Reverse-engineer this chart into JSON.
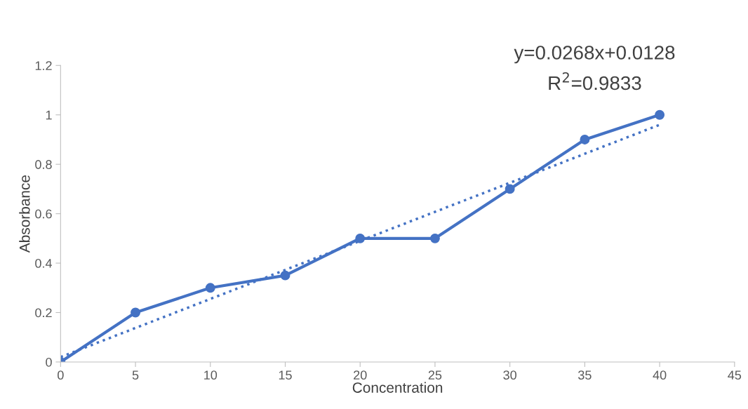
{
  "chart_data": {
    "type": "line",
    "xlabel": "Concentration",
    "ylabel": "Absorbance",
    "x": [
      0,
      5,
      10,
      15,
      20,
      25,
      30,
      35,
      40
    ],
    "series": [
      {
        "color": "#4472c4",
        "values": [
          0,
          0.2,
          0.3,
          0.35,
          0.5,
          0.5,
          0.7,
          0.9,
          1.0
        ],
        "marker": "circle",
        "line_style": "solid"
      },
      {
        "type": "line",
        "color": "#4472c4",
        "x": [
          0,
          40
        ],
        "values": [
          0.02,
          0.96
        ],
        "marker": "none",
        "line_style": "dotted"
      }
    ],
    "xlim": [
      0,
      45
    ],
    "xticks": [
      0,
      5,
      10,
      15,
      20,
      25,
      30,
      35,
      40,
      45
    ],
    "ylim": [
      0,
      1.2
    ],
    "yticks": [
      0,
      0.2,
      0.4,
      0.6,
      0.8,
      1,
      1.2
    ],
    "grid": false,
    "legend": false,
    "annotations": [
      "y=0.0268x+0.0128",
      "R$^{2}$=0.9833"
    ]
  }
}
